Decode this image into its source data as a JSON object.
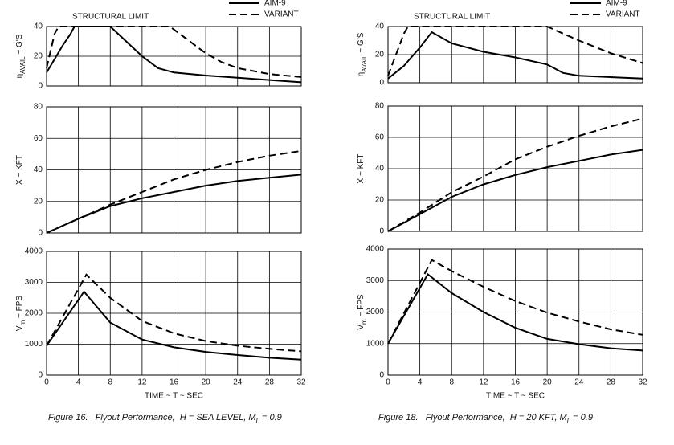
{
  "chart_data": [
    {
      "type": "line",
      "ylabel": [
        "η",
        "AVAIL",
        " ~ G'S"
      ],
      "annotation": "STRUCTURAL LIMIT",
      "xlim": [
        0,
        32
      ],
      "xticks": [
        0,
        4,
        8,
        12,
        16,
        20,
        24,
        28,
        32
      ],
      "xtick_labels": false,
      "ylim": [
        0,
        40
      ],
      "yticks": [
        0,
        20,
        40
      ],
      "grid": true,
      "series": [
        {
          "name": "AIM-9",
          "color": "#000000",
          "style": "solid",
          "x": [
            0,
            1,
            2,
            3,
            3.5,
            8,
            10,
            12,
            14,
            16,
            20,
            24,
            28,
            32
          ],
          "values": [
            9,
            18,
            27,
            35,
            40,
            40,
            30,
            20,
            12,
            9,
            7,
            5.5,
            4,
            2.5
          ]
        },
        {
          "name": "VARIANT",
          "color": "#000000",
          "style": "dashed",
          "x": [
            0,
            1,
            1.5,
            15.5,
            18,
            20,
            22,
            24,
            28,
            32
          ],
          "values": [
            12,
            35,
            40,
            40,
            30,
            22,
            16,
            12,
            8,
            6
          ]
        }
      ]
    },
    {
      "type": "line",
      "ylabel": [
        "X ~ KFT"
      ],
      "xlim": [
        0,
        32
      ],
      "xticks": [
        0,
        4,
        8,
        12,
        16,
        20,
        24,
        28,
        32
      ],
      "xtick_labels": false,
      "ylim": [
        0,
        80
      ],
      "yticks": [
        0,
        20,
        40,
        60,
        80
      ],
      "grid": true,
      "series": [
        {
          "color": "#000000",
          "style": "solid",
          "x": [
            0,
            4,
            8,
            12,
            16,
            20,
            24,
            28,
            32
          ],
          "values": [
            0,
            9,
            17,
            22,
            26,
            30,
            33,
            35,
            37
          ]
        },
        {
          "color": "#000000",
          "style": "dashed",
          "x": [
            0,
            4,
            8,
            12,
            16,
            20,
            24,
            28,
            32
          ],
          "values": [
            0,
            9,
            18,
            26,
            34,
            40,
            45,
            49,
            52
          ]
        }
      ]
    },
    {
      "type": "line",
      "ylabel": [
        "V",
        "m",
        " ~ FPS"
      ],
      "xlabel": "TIME ~ T ~ SEC",
      "caption": [
        "Figure 16.   Flyout Performance,  H = SEA LEVEL, M",
        "L",
        " = 0.9"
      ],
      "xlim": [
        0,
        32
      ],
      "xticks": [
        0,
        4,
        8,
        12,
        16,
        20,
        24,
        28,
        32
      ],
      "xtick_labels": true,
      "ylim": [
        0,
        4000
      ],
      "yticks": [
        0,
        1000,
        2000,
        3000,
        4000
      ],
      "grid": true,
      "series": [
        {
          "color": "#000000",
          "style": "solid",
          "x": [
            0,
            4.7,
            8,
            12,
            16,
            20,
            24,
            28,
            32
          ],
          "values": [
            950,
            2700,
            1700,
            1150,
            900,
            750,
            650,
            560,
            500
          ]
        },
        {
          "color": "#000000",
          "style": "dashed",
          "x": [
            0,
            5,
            8,
            12,
            16,
            20,
            24,
            28,
            32
          ],
          "values": [
            950,
            3250,
            2500,
            1750,
            1350,
            1100,
            950,
            850,
            770
          ]
        }
      ]
    },
    {
      "type": "line",
      "ylabel": [
        "η",
        "AVAIL",
        " ~ G'S"
      ],
      "annotation": "STRUCTURAL LIMIT",
      "xlim": [
        0,
        32
      ],
      "xticks": [
        0,
        4,
        8,
        12,
        16,
        20,
        24,
        28,
        32
      ],
      "xtick_labels": false,
      "ylim": [
        0,
        40
      ],
      "yticks": [
        0,
        20,
        40
      ],
      "grid": true,
      "series": [
        {
          "name": "AIM-9",
          "color": "#000000",
          "style": "solid",
          "x": [
            0,
            2,
            4,
            5.5,
            8,
            12,
            16,
            20,
            22,
            24,
            28,
            32
          ],
          "values": [
            3,
            12,
            25,
            36,
            28,
            22,
            18,
            13,
            7,
            5,
            4,
            3
          ]
        },
        {
          "name": "VARIANT",
          "color": "#000000",
          "style": "dashed",
          "x": [
            0,
            2,
            2.5,
            20,
            24,
            28,
            32
          ],
          "values": [
            5,
            35,
            40,
            40,
            30,
            21,
            14
          ]
        }
      ]
    },
    {
      "type": "line",
      "ylabel": [
        "X ~ KFT"
      ],
      "xlim": [
        0,
        32
      ],
      "xticks": [
        0,
        4,
        8,
        12,
        16,
        20,
        24,
        28,
        32
      ],
      "xtick_labels": false,
      "ylim": [
        0,
        80
      ],
      "yticks": [
        0,
        20,
        40,
        60,
        80
      ],
      "grid": true,
      "series": [
        {
          "color": "#000000",
          "style": "solid",
          "x": [
            0,
            4,
            8,
            12,
            16,
            20,
            24,
            28,
            32
          ],
          "values": [
            0,
            11,
            22,
            30,
            36,
            41,
            45,
            49,
            52
          ]
        },
        {
          "color": "#000000",
          "style": "dashed",
          "x": [
            0,
            4,
            8,
            12,
            16,
            20,
            24,
            28,
            32
          ],
          "values": [
            0,
            12,
            25,
            35,
            46,
            54,
            61,
            67,
            72
          ]
        }
      ]
    },
    {
      "type": "line",
      "ylabel": [
        "V",
        "m",
        " ~ FPS"
      ],
      "xlabel": "TIME ~ T ~ SEC",
      "caption": [
        "Figure 18.   Flyout Performance,  H = 20 KFT, M",
        "L",
        " = 0.9"
      ],
      "xlim": [
        0,
        32
      ],
      "xticks": [
        0,
        4,
        8,
        12,
        16,
        20,
        24,
        28,
        32
      ],
      "xtick_labels": true,
      "ylim": [
        0,
        4000
      ],
      "yticks": [
        0,
        1000,
        2000,
        3000,
        4000
      ],
      "grid": true,
      "series": [
        {
          "color": "#000000",
          "style": "solid",
          "x": [
            0,
            5,
            8,
            12,
            16,
            20,
            24,
            28,
            32
          ],
          "values": [
            1000,
            3200,
            2600,
            2000,
            1500,
            1150,
            980,
            850,
            780
          ]
        },
        {
          "color": "#000000",
          "style": "dashed",
          "x": [
            0,
            5.5,
            8,
            12,
            16,
            20,
            24,
            28,
            32
          ],
          "values": [
            1000,
            3650,
            3300,
            2800,
            2350,
            1980,
            1700,
            1450,
            1280
          ]
        }
      ]
    }
  ]
}
